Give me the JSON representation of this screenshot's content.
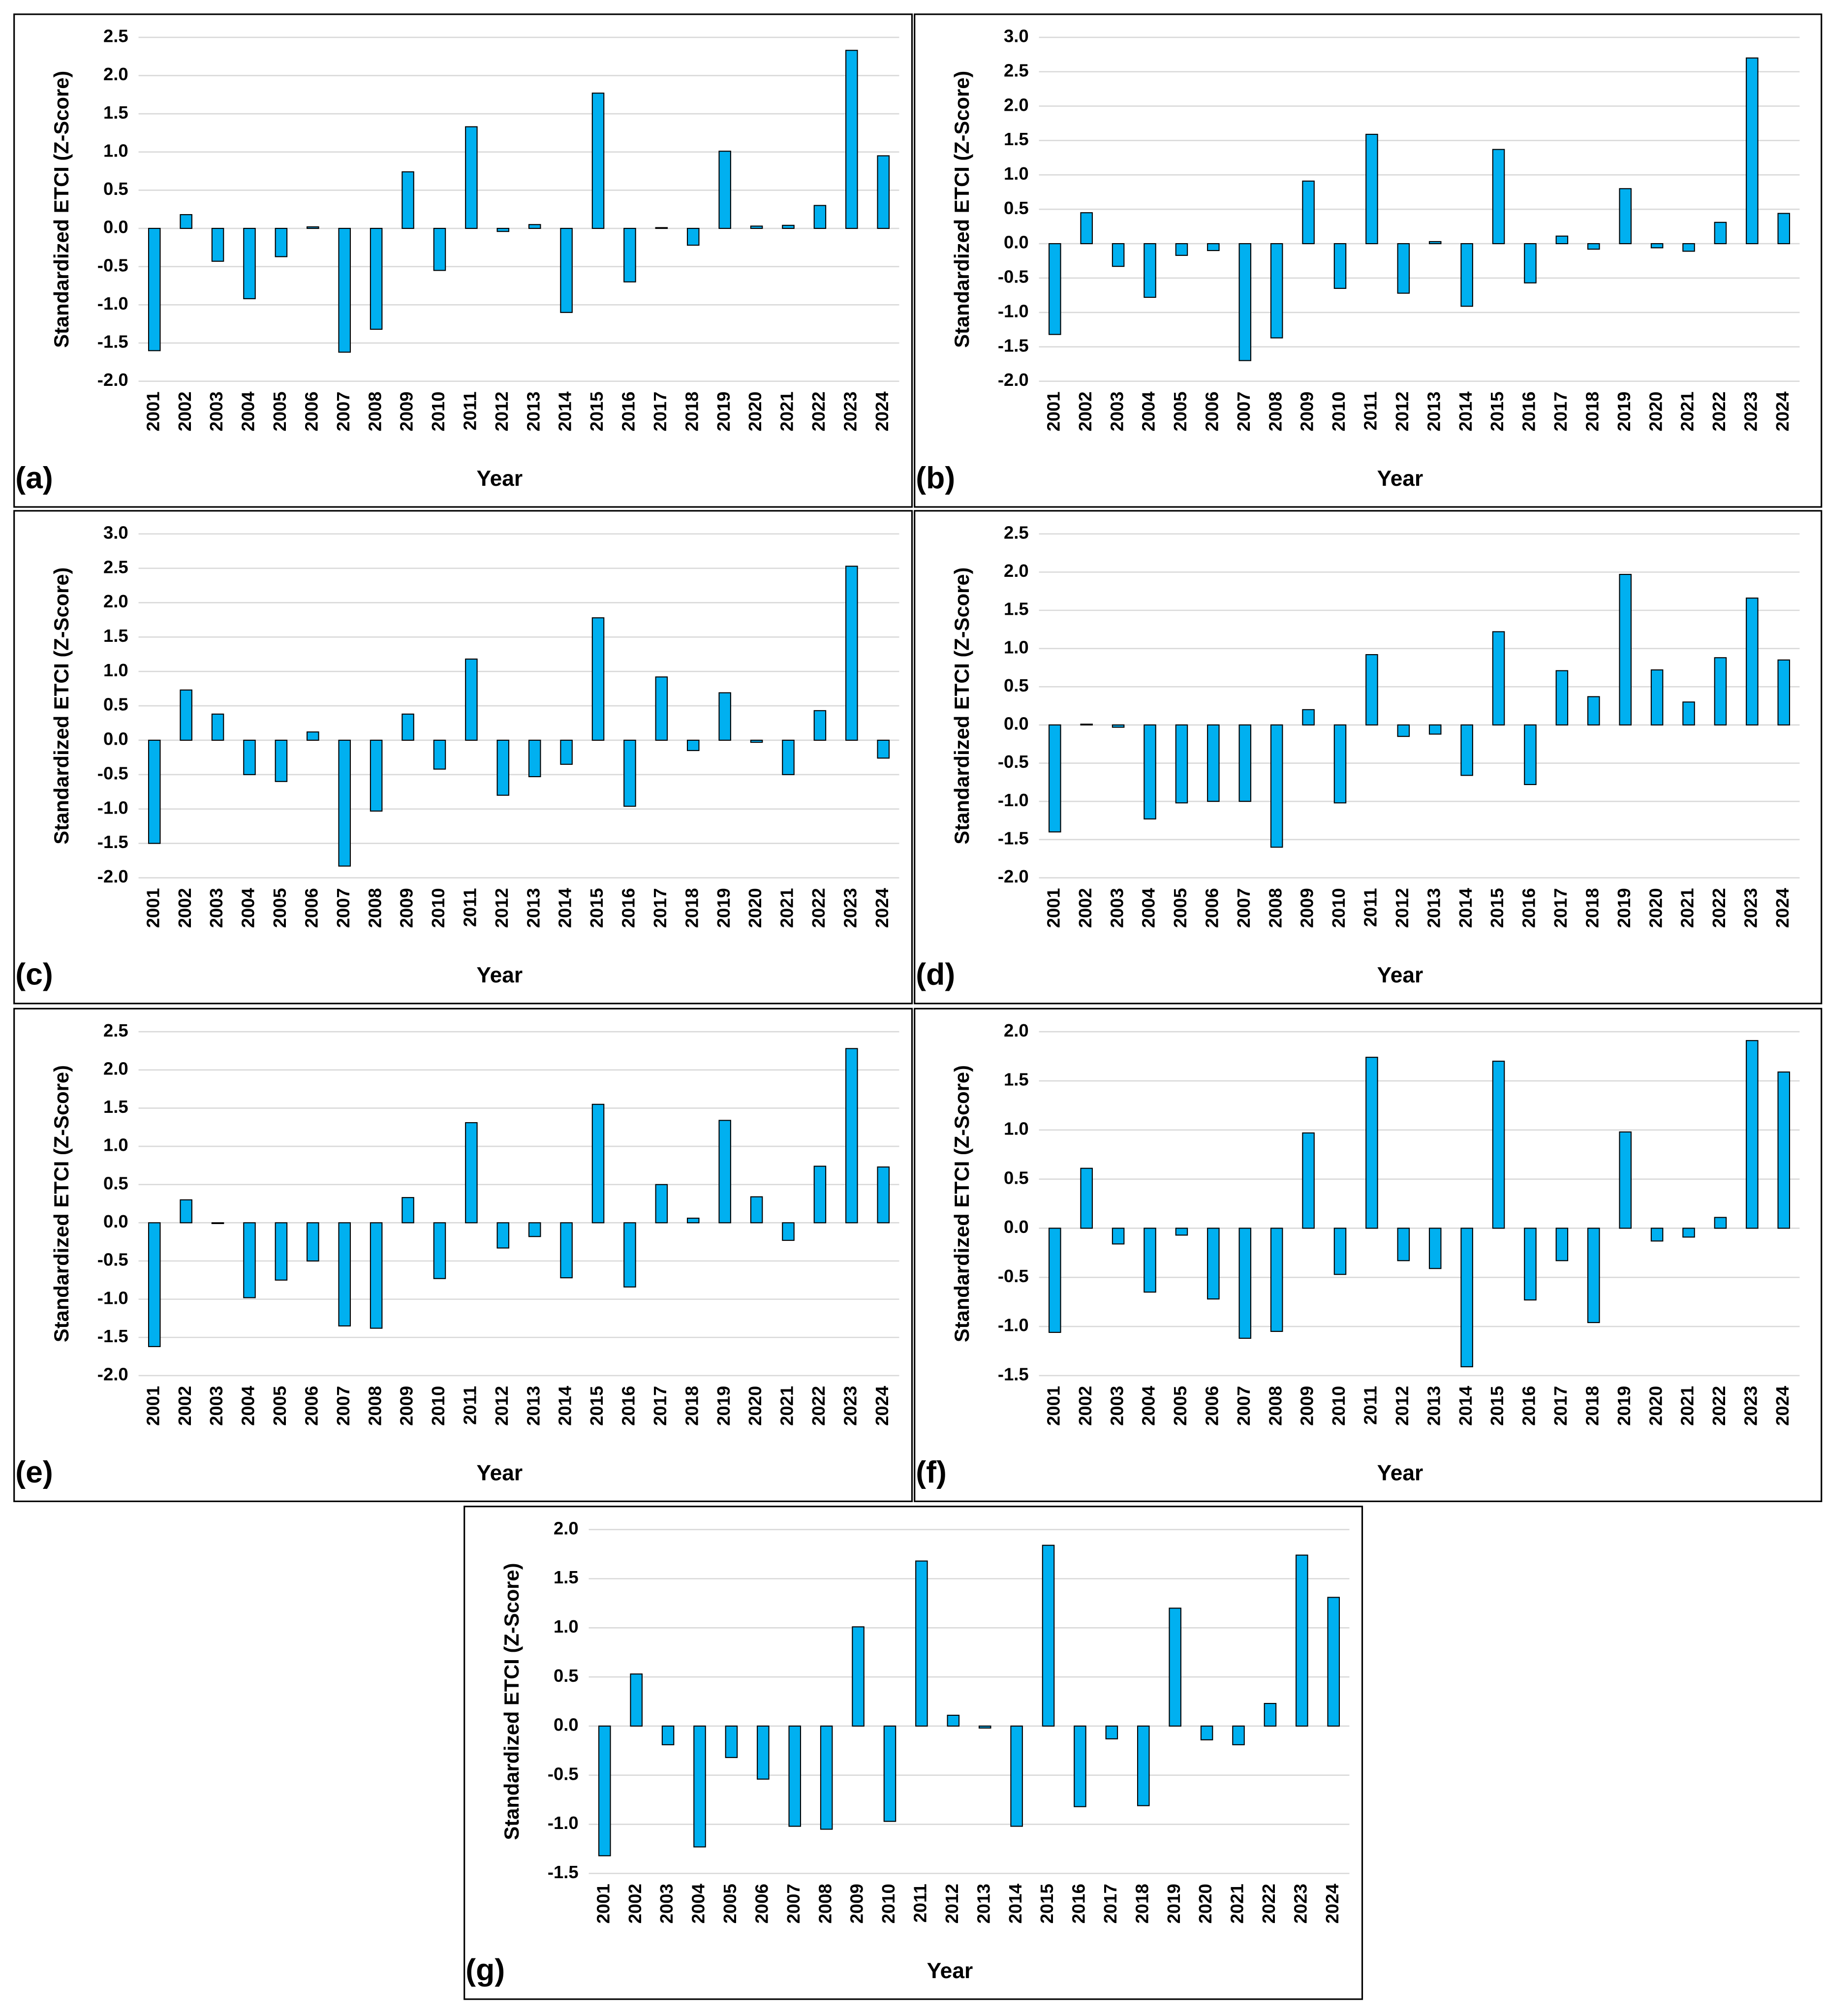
{
  "chart_data": [
    {
      "type": "bar",
      "panel_label": "(a)",
      "y_label": "Standardized ETCI (Z-Score)",
      "x_label": "Year",
      "color": "#00b0f0",
      "grid": true,
      "categories": [
        "2001",
        "2002",
        "2003",
        "2004",
        "2005",
        "2006",
        "2007",
        "2008",
        "2009",
        "2010",
        "2011",
        "2012",
        "2013",
        "2014",
        "2015",
        "2016",
        "2017",
        "2018",
        "2019",
        "2020",
        "2021",
        "2022",
        "2023",
        "2024"
      ],
      "values": [
        -1.6,
        0.18,
        -0.43,
        -0.92,
        -0.37,
        0.02,
        -1.62,
        -1.32,
        0.74,
        -0.55,
        1.33,
        -0.04,
        0.05,
        -1.1,
        1.77,
        -0.7,
        0.01,
        -0.22,
        1.01,
        0.03,
        0.04,
        0.3,
        2.33,
        0.95
      ],
      "ylim": [
        -2,
        2.5
      ],
      "yticks": [
        2.5,
        {
          "value": 2,
          "label": "2.0"
        },
        1.5,
        {
          "value": 1,
          "label": "1.0"
        },
        0.5,
        {
          "value": 0,
          "label": "0.0"
        },
        -0.5,
        {
          "value": -1,
          "label": "-1.0"
        },
        -1.5,
        {
          "value": -2,
          "label": "-2.0"
        }
      ]
    },
    {
      "type": "bar",
      "panel_label": "(b)",
      "y_label": "Standardized ETCI (Z-Score)",
      "x_label": "Year",
      "color": "#00b0f0",
      "grid": true,
      "categories": [
        "2001",
        "2002",
        "2003",
        "2004",
        "2005",
        "2006",
        "2007",
        "2008",
        "2009",
        "2010",
        "2011",
        "2012",
        "2013",
        "2014",
        "2015",
        "2016",
        "2017",
        "2018",
        "2019",
        "2020",
        "2021",
        "2022",
        "2023",
        "2024"
      ],
      "values": [
        -1.32,
        0.45,
        -0.33,
        -0.78,
        -0.17,
        -0.1,
        -1.7,
        -1.37,
        0.91,
        -0.65,
        1.59,
        -0.72,
        0.03,
        -0.91,
        1.37,
        -0.57,
        0.11,
        -0.08,
        0.8,
        -0.06,
        -0.11,
        0.31,
        2.7,
        0.44
      ],
      "ylim": [
        -2,
        3
      ],
      "yticks": [
        {
          "value": 3,
          "label": "3.0"
        },
        2.5,
        {
          "value": 2,
          "label": "2.0"
        },
        1.5,
        {
          "value": 1,
          "label": "1.0"
        },
        0.5,
        {
          "value": 0,
          "label": "0.0"
        },
        -0.5,
        {
          "value": -1,
          "label": "-1.0"
        },
        -1.5,
        {
          "value": -2,
          "label": "-2.0"
        }
      ]
    },
    {
      "type": "bar",
      "panel_label": "(c)",
      "y_label": "Standardized ETCI (Z-Score)",
      "x_label": "Year",
      "color": "#00b0f0",
      "grid": true,
      "categories": [
        "2001",
        "2002",
        "2003",
        "2004",
        "2005",
        "2006",
        "2007",
        "2008",
        "2009",
        "2010",
        "2011",
        "2012",
        "2013",
        "2014",
        "2015",
        "2016",
        "2017",
        "2018",
        "2019",
        "2020",
        "2021",
        "2022",
        "2023",
        "2024"
      ],
      "values": [
        -1.5,
        0.73,
        0.38,
        -0.5,
        -0.6,
        0.12,
        -1.83,
        -1.03,
        0.38,
        -0.42,
        1.18,
        -0.8,
        -0.53,
        -0.35,
        1.78,
        -0.96,
        0.92,
        -0.15,
        0.69,
        -0.03,
        -0.5,
        0.43,
        2.53,
        -0.26
      ],
      "ylim": [
        -2,
        3
      ],
      "yticks": [
        {
          "value": 3,
          "label": "3.0"
        },
        2.5,
        {
          "value": 2,
          "label": "2.0"
        },
        1.5,
        {
          "value": 1,
          "label": "1.0"
        },
        0.5,
        {
          "value": 0,
          "label": "0.0"
        },
        -0.5,
        {
          "value": -1,
          "label": "-1.0"
        },
        -1.5,
        {
          "value": -2,
          "label": "-2.0"
        }
      ]
    },
    {
      "type": "bar",
      "panel_label": "(d)",
      "y_label": "Standardized ETCI (Z-Score)",
      "x_label": "Year",
      "color": "#00b0f0",
      "grid": true,
      "categories": [
        "2001",
        "2002",
        "2003",
        "2004",
        "2005",
        "2006",
        "2007",
        "2008",
        "2009",
        "2010",
        "2011",
        "2012",
        "2013",
        "2014",
        "2015",
        "2016",
        "2017",
        "2018",
        "2019",
        "2020",
        "2021",
        "2022",
        "2023",
        "2024"
      ],
      "values": [
        -1.4,
        0.01,
        -0.03,
        -1.23,
        -1.02,
        -1.0,
        -1.0,
        -1.6,
        0.2,
        -1.02,
        0.92,
        -0.15,
        -0.12,
        -0.66,
        1.22,
        -0.78,
        0.71,
        0.37,
        1.97,
        0.72,
        0.3,
        0.88,
        1.66,
        0.85
      ],
      "ylim": [
        -2,
        2.5
      ],
      "yticks": [
        2.5,
        {
          "value": 2,
          "label": "2.0"
        },
        1.5,
        {
          "value": 1,
          "label": "1.0"
        },
        0.5,
        {
          "value": 0,
          "label": "0.0"
        },
        -0.5,
        {
          "value": -1,
          "label": "-1.0"
        },
        -1.5,
        {
          "value": -2,
          "label": "-2.0"
        }
      ]
    },
    {
      "type": "bar",
      "panel_label": "(e)",
      "y_label": "Standardized ETCI (Z-Score)",
      "x_label": "Year",
      "color": "#00b0f0",
      "grid": true,
      "categories": [
        "2001",
        "2002",
        "2003",
        "2004",
        "2005",
        "2006",
        "2007",
        "2008",
        "2009",
        "2010",
        "2011",
        "2012",
        "2013",
        "2014",
        "2015",
        "2016",
        "2017",
        "2018",
        "2019",
        "2020",
        "2021",
        "2022",
        "2023",
        "2024"
      ],
      "values": [
        -1.62,
        0.3,
        -0.01,
        -0.98,
        -0.75,
        -0.5,
        -1.35,
        -1.38,
        0.33,
        -0.73,
        1.31,
        -0.33,
        -0.18,
        -0.72,
        1.55,
        -0.84,
        0.5,
        0.06,
        1.34,
        0.34,
        -0.23,
        0.74,
        2.28,
        0.73
      ],
      "ylim": [
        -2,
        2.5
      ],
      "yticks": [
        2.5,
        {
          "value": 2,
          "label": "2.0"
        },
        1.5,
        {
          "value": 1,
          "label": "1.0"
        },
        0.5,
        {
          "value": 0,
          "label": "0.0"
        },
        -0.5,
        {
          "value": -1,
          "label": "-1.0"
        },
        -1.5,
        {
          "value": -2,
          "label": "-2.0"
        }
      ]
    },
    {
      "type": "bar",
      "panel_label": "(f)",
      "y_label": "Standardized ETCI (Z-Score)",
      "x_label": "Year",
      "color": "#00b0f0",
      "grid": true,
      "categories": [
        "2001",
        "2002",
        "2003",
        "2004",
        "2005",
        "2006",
        "2007",
        "2008",
        "2009",
        "2010",
        "2011",
        "2012",
        "2013",
        "2014",
        "2015",
        "2016",
        "2017",
        "2018",
        "2019",
        "2020",
        "2021",
        "2022",
        "2023",
        "2024"
      ],
      "values": [
        -1.06,
        0.61,
        -0.16,
        -0.65,
        -0.07,
        -0.72,
        -1.12,
        -1.05,
        0.97,
        -0.47,
        1.74,
        -0.33,
        -0.41,
        -1.41,
        1.7,
        -0.73,
        -0.33,
        -0.96,
        0.98,
        -0.13,
        -0.09,
        0.11,
        1.91,
        1.59
      ],
      "ylim": [
        -1.5,
        2
      ],
      "yticks": [
        {
          "value": 2,
          "label": "2.0"
        },
        1.5,
        {
          "value": 1,
          "label": "1.0"
        },
        0.5,
        {
          "value": 0,
          "label": "0.0"
        },
        -0.5,
        {
          "value": -1,
          "label": "-1.0"
        },
        -1.5
      ]
    },
    {
      "type": "bar",
      "panel_label": "(g)",
      "y_label": "Standardized ETCI (Z-Score)",
      "x_label": "Year",
      "color": "#00b0f0",
      "grid": true,
      "categories": [
        "2001",
        "2002",
        "2003",
        "2004",
        "2005",
        "2006",
        "2007",
        "2008",
        "2009",
        "2010",
        "2011",
        "2012",
        "2013",
        "2014",
        "2015",
        "2016",
        "2017",
        "2018",
        "2019",
        "2020",
        "2021",
        "2022",
        "2023",
        "2024"
      ],
      "values": [
        -1.32,
        0.53,
        -0.19,
        -1.23,
        -0.32,
        -0.54,
        -1.02,
        -1.05,
        1.01,
        -0.97,
        1.68,
        0.11,
        -0.02,
        -1.02,
        1.84,
        -0.82,
        -0.13,
        -0.81,
        1.2,
        -0.14,
        -0.19,
        0.23,
        1.74,
        1.31
      ],
      "ylim": [
        -1.5,
        2
      ],
      "yticks": [
        {
          "value": 2,
          "label": "2.0"
        },
        1.5,
        {
          "value": 1,
          "label": "1.0"
        },
        0.5,
        {
          "value": 0,
          "label": "0.0"
        },
        -0.5,
        {
          "value": -1,
          "label": "-1.0"
        },
        -1.5
      ]
    }
  ]
}
